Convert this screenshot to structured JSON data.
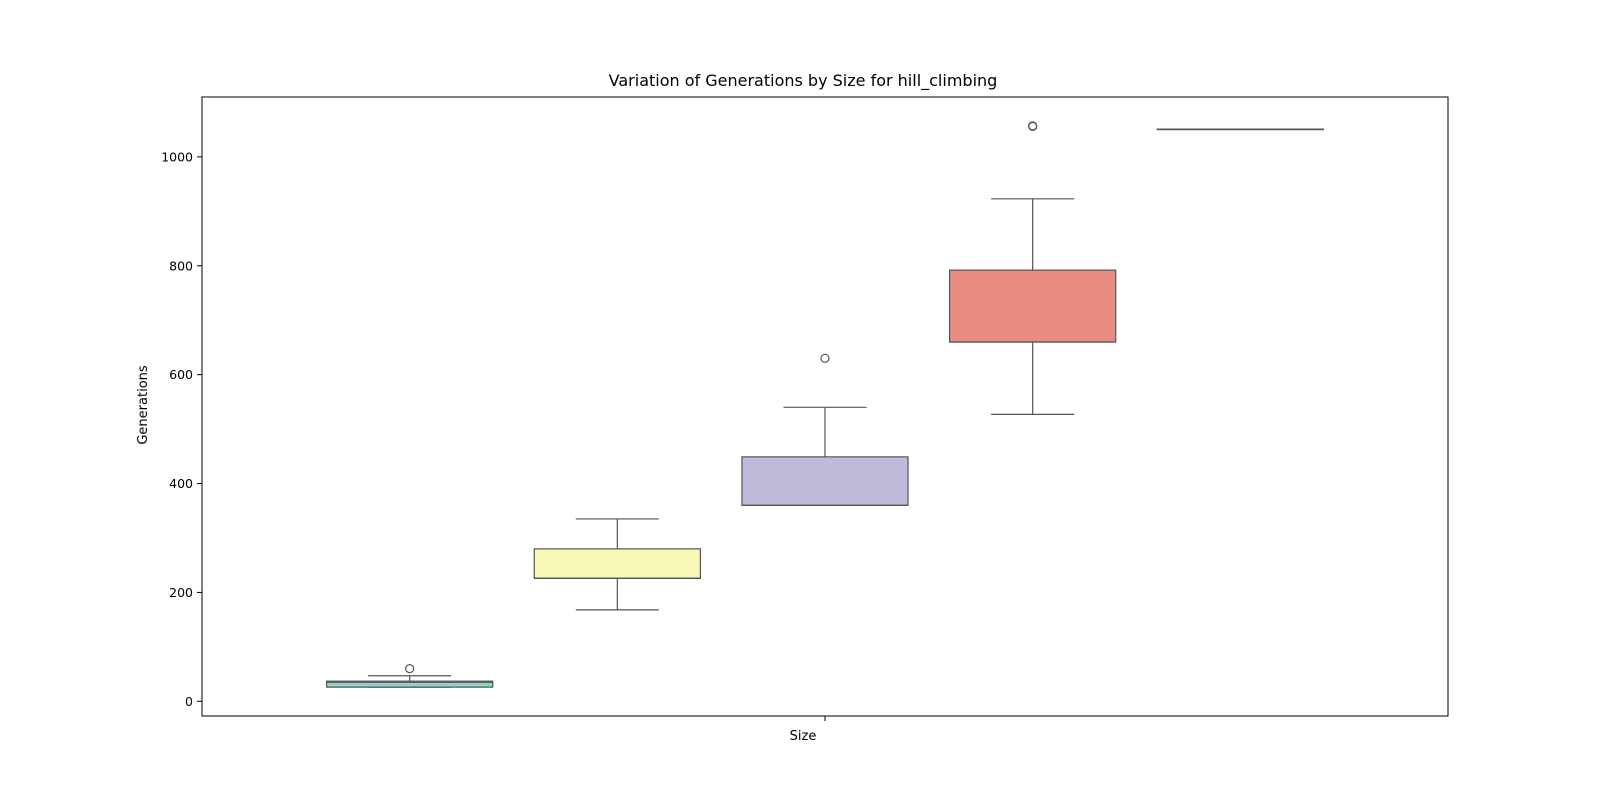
{
  "chart_data": {
    "type": "boxplot",
    "title": "Variation of Generations by Size for hill_climbing",
    "xlabel": "Size",
    "ylabel": "Generations",
    "ylim": [
      -27,
      1110
    ],
    "yticks": [
      0,
      200,
      400,
      600,
      800,
      1000
    ],
    "xticks": [
      ""
    ],
    "grid": false,
    "stroke_color": "#555555",
    "series": [
      {
        "color": "#8dd3c7",
        "min": 26,
        "q1": 26,
        "median": 35,
        "q3": 37,
        "max": 47,
        "outliers": [
          60
        ]
      },
      {
        "color": "#f7f7b8",
        "min": 168,
        "q1": 226,
        "median": 226,
        "q3": 280,
        "max": 335,
        "outliers": []
      },
      {
        "color": "#bebada",
        "min": 360,
        "q1": 360,
        "median": 360,
        "q3": 449,
        "max": 540,
        "outliers": [
          630
        ]
      },
      {
        "color": "#e98d82",
        "min": 527,
        "q1": 660,
        "median": 660,
        "q3": 792,
        "max": 923,
        "outliers": [
          1056,
          1057
        ]
      },
      {
        "color": "#8da0cb",
        "min": 1051,
        "q1": 1051,
        "median": 1051,
        "q3": 1051,
        "max": 1051,
        "outliers": []
      }
    ]
  }
}
